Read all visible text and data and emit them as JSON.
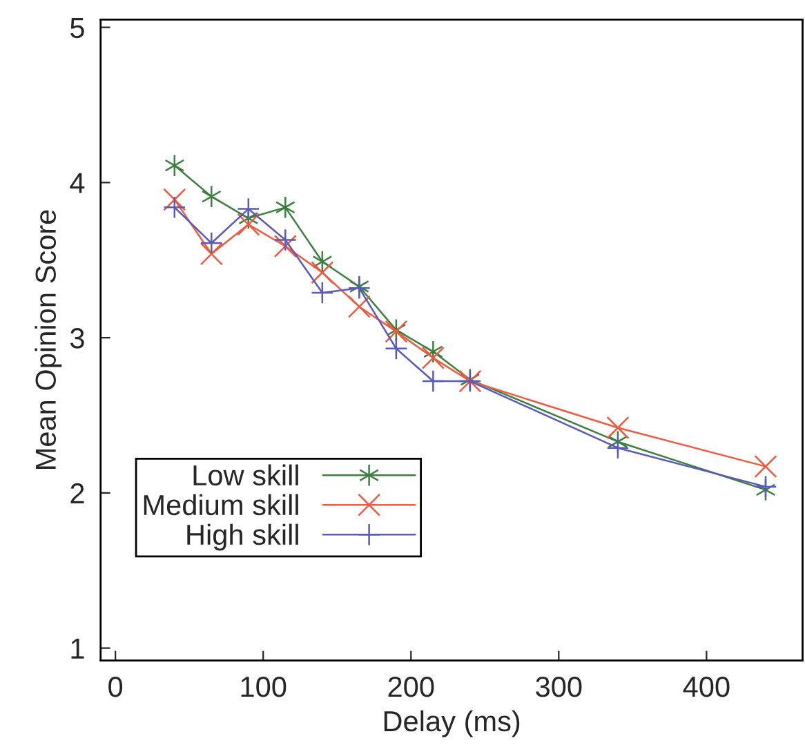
{
  "chart_data": {
    "type": "line",
    "xlabel": "Delay (ms)",
    "ylabel": "Mean Opinion Score",
    "x": [
      40,
      65,
      90,
      115,
      140,
      165,
      190,
      215,
      240,
      340,
      440
    ],
    "series": [
      {
        "name": "Low skill",
        "color": "#3c8040",
        "marker": "cross",
        "values": [
          4.11,
          3.91,
          3.77,
          3.84,
          3.49,
          3.33,
          3.05,
          2.91,
          2.73,
          2.33,
          2.02
        ]
      },
      {
        "name": "Medium skill",
        "color": "#f05a40",
        "marker": "cross",
        "values": [
          3.89,
          3.54,
          3.73,
          3.59,
          3.42,
          3.2,
          3.04,
          2.87,
          2.72,
          2.42,
          2.17
        ]
      },
      {
        "name": "High skill",
        "color": "#5a5ab8",
        "marker": "plus",
        "values": [
          3.84,
          3.61,
          3.83,
          3.63,
          3.29,
          3.32,
          2.93,
          2.72,
          2.72,
          2.29,
          2.04
        ]
      }
    ],
    "xlim": [
      -10,
      465
    ],
    "xticks": [
      0,
      100,
      200,
      300,
      400
    ],
    "ylim": [
      0.92,
      5.05
    ],
    "yticks": [
      1,
      2,
      3,
      4,
      5
    ],
    "grid": false,
    "legend": "bottom left",
    "line_style": "solid"
  }
}
